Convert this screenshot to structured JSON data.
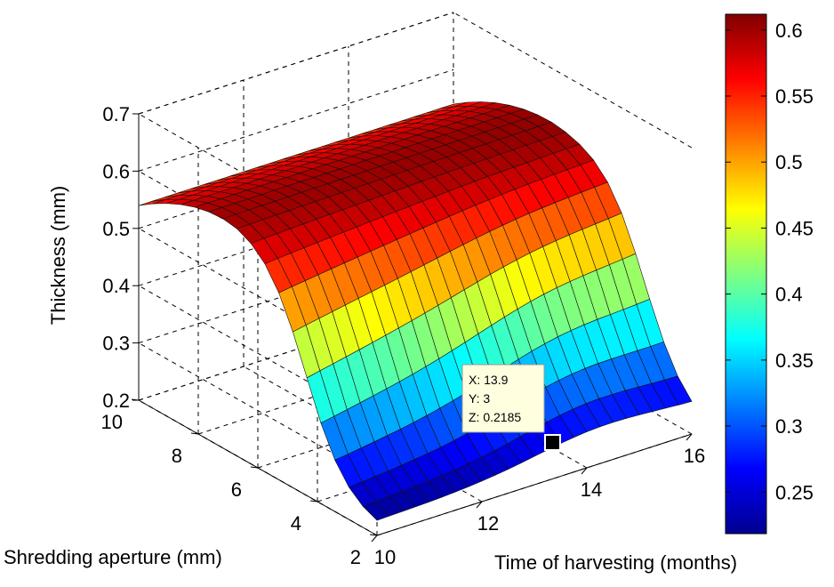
{
  "chart_data": {
    "type": "surface",
    "title": "",
    "x_axis": {
      "label": "Time of harvesting (months)",
      "range": [
        10,
        16
      ],
      "ticks": [
        10,
        12,
        14,
        16
      ]
    },
    "y_axis": {
      "label": "Shredding aperture (mm)",
      "range": [
        2,
        10
      ],
      "ticks": [
        2,
        4,
        6,
        8,
        10
      ]
    },
    "z_axis": {
      "label": "Thickness (mm)",
      "range": [
        0.2,
        0.7
      ],
      "ticks": [
        "0.2",
        "0.3",
        "0.4",
        "0.5",
        "0.6",
        "0.7"
      ]
    },
    "grid": true,
    "colormap": "jet",
    "colorbar": {
      "range": [
        0.2185,
        0.612
      ],
      "ticks": [
        "0.25",
        "0.3",
        "0.35",
        "0.4",
        "0.45",
        "0.5",
        "0.55",
        "0.6"
      ],
      "placement": "right"
    },
    "grid_resolution": {
      "nx": 24,
      "ny": 17
    },
    "surface_samples": [
      {
        "x": 10,
        "y": 10,
        "z": 0.54
      },
      {
        "x": 16,
        "y": 10,
        "z": 0.58
      },
      {
        "x": 10,
        "y": 6,
        "z": 0.61
      },
      {
        "x": 16,
        "y": 6,
        "z": 0.59
      },
      {
        "x": 10,
        "y": 2,
        "z": 0.22
      },
      {
        "x": 16,
        "y": 2,
        "z": 0.24
      },
      {
        "x": 13.9,
        "y": 3,
        "z": 0.2185
      }
    ],
    "datatip": {
      "x": 13.9,
      "y": 3,
      "z": 0.2185,
      "lines": [
        "X: 13.9",
        "Y: 3",
        "Z: 0.2185"
      ]
    }
  }
}
